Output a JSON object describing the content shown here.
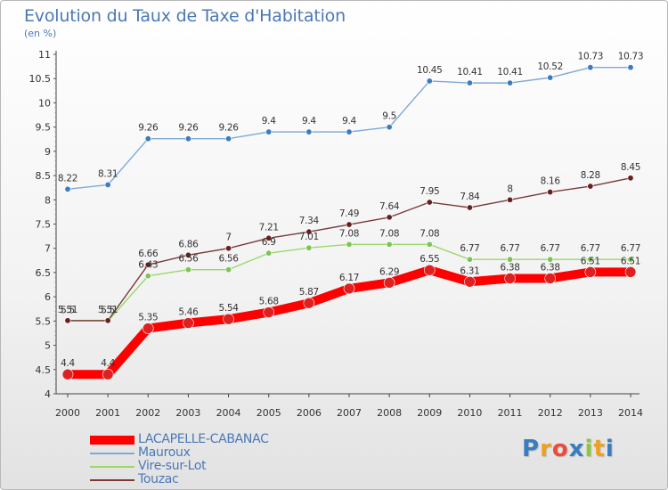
{
  "chart_data": {
    "type": "line",
    "title": "Evolution du Taux de Taxe d'Habitation",
    "subtitle": "(en %)",
    "categories": [
      "2000",
      "2001",
      "2002",
      "2003",
      "2004",
      "2005",
      "2006",
      "2007",
      "2008",
      "2009",
      "2010",
      "2011",
      "2012",
      "2013",
      "2014"
    ],
    "ylim": [
      4,
      11
    ],
    "yticks": [
      "4",
      "4.5",
      "5",
      "5.5",
      "6",
      "6.5",
      "7",
      "7.5",
      "8",
      "8.5",
      "9",
      "9.5",
      "10",
      "10.5",
      "11"
    ],
    "grid": false,
    "legend_position": "bottom-left",
    "series": [
      {
        "name": "LACAPELLE-CABANAC",
        "color": "#ff0000",
        "marker_color": "#e02020",
        "values": [
          4.4,
          4.4,
          5.35,
          5.46,
          5.54,
          5.68,
          5.87,
          6.17,
          6.29,
          6.55,
          6.31,
          6.38,
          6.38,
          6.51,
          6.51
        ],
        "labels": [
          "4.4",
          "4.4",
          "5.35",
          "5.46",
          "5.54",
          "5.68",
          "5.87",
          "6.17",
          "6.29",
          "6.55",
          "6.31",
          "6.38",
          "6.38",
          "6.51",
          "6.51"
        ]
      },
      {
        "name": "Mauroux",
        "color": "#7ea9d6",
        "marker_color": "#3a7cc0",
        "values": [
          8.22,
          8.31,
          9.26,
          9.26,
          9.26,
          9.4,
          9.4,
          9.4,
          9.5,
          10.45,
          10.41,
          10.41,
          10.52,
          10.73,
          10.73
        ],
        "labels": [
          "8.22",
          "8.31",
          "9.26",
          "9.26",
          "9.26",
          "9.4",
          "9.4",
          "9.4",
          "9.5",
          "10.45",
          "10.41",
          "10.41",
          "10.52",
          "10.73",
          "10.73"
        ]
      },
      {
        "name": "Vire-sur-Lot",
        "color": "#9ad86a",
        "marker_color": "#7cc455",
        "values": [
          5.5,
          5.5,
          6.43,
          6.56,
          6.56,
          6.9,
          7.01,
          7.08,
          7.08,
          7.08,
          6.77,
          6.77,
          6.77,
          6.77,
          6.77
        ],
        "labels": [
          "5.5",
          "5.5",
          "6.43",
          "6.56",
          "6.56",
          "6.9",
          "7.01",
          "7.08",
          "7.08",
          "7.08",
          "6.77",
          "6.77",
          "6.77",
          "6.77",
          "6.77"
        ]
      },
      {
        "name": "Touzac",
        "color": "#7a3a3a",
        "marker_color": "#6a1f1f",
        "values": [
          5.51,
          5.51,
          6.66,
          6.86,
          7.0,
          7.21,
          7.34,
          7.49,
          7.64,
          7.95,
          7.84,
          8.0,
          8.16,
          8.28,
          8.45
        ],
        "labels": [
          "5.51",
          "5.51",
          "6.66",
          "6.86",
          "7",
          "7.21",
          "7.34",
          "7.49",
          "7.64",
          "7.95",
          "7.84",
          "8",
          "8.16",
          "8.28",
          "8.45"
        ]
      }
    ]
  },
  "brand": {
    "letters": [
      "P",
      "r",
      "o",
      "x",
      "i",
      "t",
      "i"
    ],
    "colors": [
      "#3a7cc0",
      "#f0a020",
      "#e84c3c",
      "#3a7cc0",
      "#8cc63f",
      "#f0a020",
      "#3a7cc0"
    ]
  }
}
